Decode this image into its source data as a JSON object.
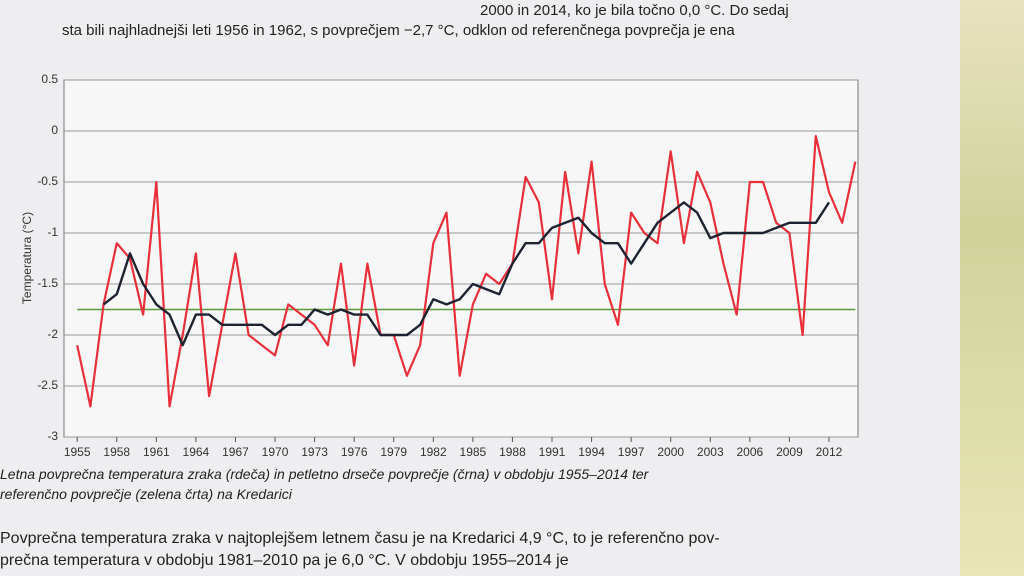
{
  "header": {
    "lines": [
      "2000 in 2014, ko je bila točno 0,0 °C. Do sedaj",
      "sta bili najhladnejši leti 1956 in 1962, s povprečjem −2,7 °C, odklon od referenčnega povprečja je ena"
    ]
  },
  "chart_data": {
    "type": "line",
    "y_label": "Temperatura (°C)",
    "x": [
      1955,
      1956,
      1957,
      1958,
      1959,
      1960,
      1961,
      1962,
      1963,
      1964,
      1965,
      1966,
      1967,
      1968,
      1969,
      1970,
      1971,
      1972,
      1973,
      1974,
      1975,
      1976,
      1977,
      1978,
      1979,
      1980,
      1981,
      1982,
      1983,
      1984,
      1985,
      1986,
      1987,
      1988,
      1989,
      1990,
      1991,
      1992,
      1993,
      1994,
      1995,
      1996,
      1997,
      1998,
      1999,
      2000,
      2001,
      2002,
      2003,
      2004,
      2005,
      2006,
      2007,
      2008,
      2009,
      2010,
      2011,
      2012,
      2013,
      2014
    ],
    "series": [
      {
        "color": "#e8303a",
        "values": [
          -2.1,
          -2.7,
          -1.7,
          -1.1,
          -1.25,
          -1.8,
          -0.5,
          -2.7,
          -2.0,
          -1.2,
          -2.6,
          -1.9,
          -1.2,
          -2.0,
          -2.1,
          -2.2,
          -1.7,
          -1.8,
          -1.9,
          -2.1,
          -1.3,
          -2.3,
          -1.3,
          -2.0,
          -2.0,
          -2.4,
          -2.1,
          -1.1,
          -0.8,
          -2.4,
          -1.7,
          -1.4,
          -1.5,
          -1.3,
          -0.45,
          -0.7,
          -1.65,
          -0.4,
          -1.2,
          -0.3,
          -1.5,
          -1.9,
          -0.8,
          -1.0,
          -1.1,
          -0.2,
          -1.1,
          -0.4,
          -0.7,
          -1.3,
          -1.8,
          -0.5,
          -0.5,
          -0.9,
          -1.0,
          -2.0,
          -0.05,
          -0.6,
          -0.9,
          -0.3
        ]
      },
      {
        "color": "#1d2330",
        "values": [
          null,
          null,
          -1.7,
          -1.6,
          -1.2,
          -1.5,
          -1.7,
          -1.8,
          -2.1,
          -1.8,
          -1.8,
          -1.9,
          -1.9,
          -1.9,
          -1.9,
          -2.0,
          -1.9,
          -1.9,
          -1.75,
          -1.8,
          -1.75,
          -1.8,
          -1.8,
          -2.0,
          -2.0,
          -2.0,
          -1.9,
          -1.65,
          -1.7,
          -1.65,
          -1.5,
          -1.55,
          -1.6,
          -1.3,
          -1.1,
          -1.1,
          -0.95,
          -0.9,
          -0.85,
          -1.0,
          -1.1,
          -1.1,
          -1.3,
          -1.1,
          -0.9,
          -0.8,
          -0.7,
          -0.8,
          -1.05,
          -1.0,
          -1.0,
          -1.0,
          -1.0,
          -0.95,
          -0.9,
          -0.9,
          -0.9,
          -0.7,
          null,
          null
        ]
      }
    ],
    "reference": {
      "value": -1.75,
      "color": "#5a9a3a"
    },
    "xlim": [
      1954,
      2014.2
    ],
    "xticks": [
      1955,
      1958,
      1961,
      1964,
      1967,
      1970,
      1973,
      1976,
      1979,
      1982,
      1985,
      1988,
      1991,
      1994,
      1997,
      2000,
      2003,
      2006,
      2009,
      2012
    ],
    "ylim": [
      -3,
      0.5
    ],
    "yticks": [
      -3,
      -2.5,
      -2,
      -1.5,
      -1,
      -0.5,
      0,
      0.5
    ],
    "grid": true,
    "caption": [
      "Letna povprečna temperatura zraka (rdeča) in petletno drseče povprečje (črna) v obdobju 1955–2014 ter",
      "referenčno povprečje (zelena črta) na Kredarici"
    ]
  },
  "footer": {
    "lines": [
      "Povprečna temperatura zraka v najtoplejšem letnem času  je na Kredarici 4,9 °C, to je referenčno pov-",
      "prečna temperatura v obdobju 1981–2010 pa je 6,0 °C. V obdobju 1955–2014 je"
    ]
  }
}
